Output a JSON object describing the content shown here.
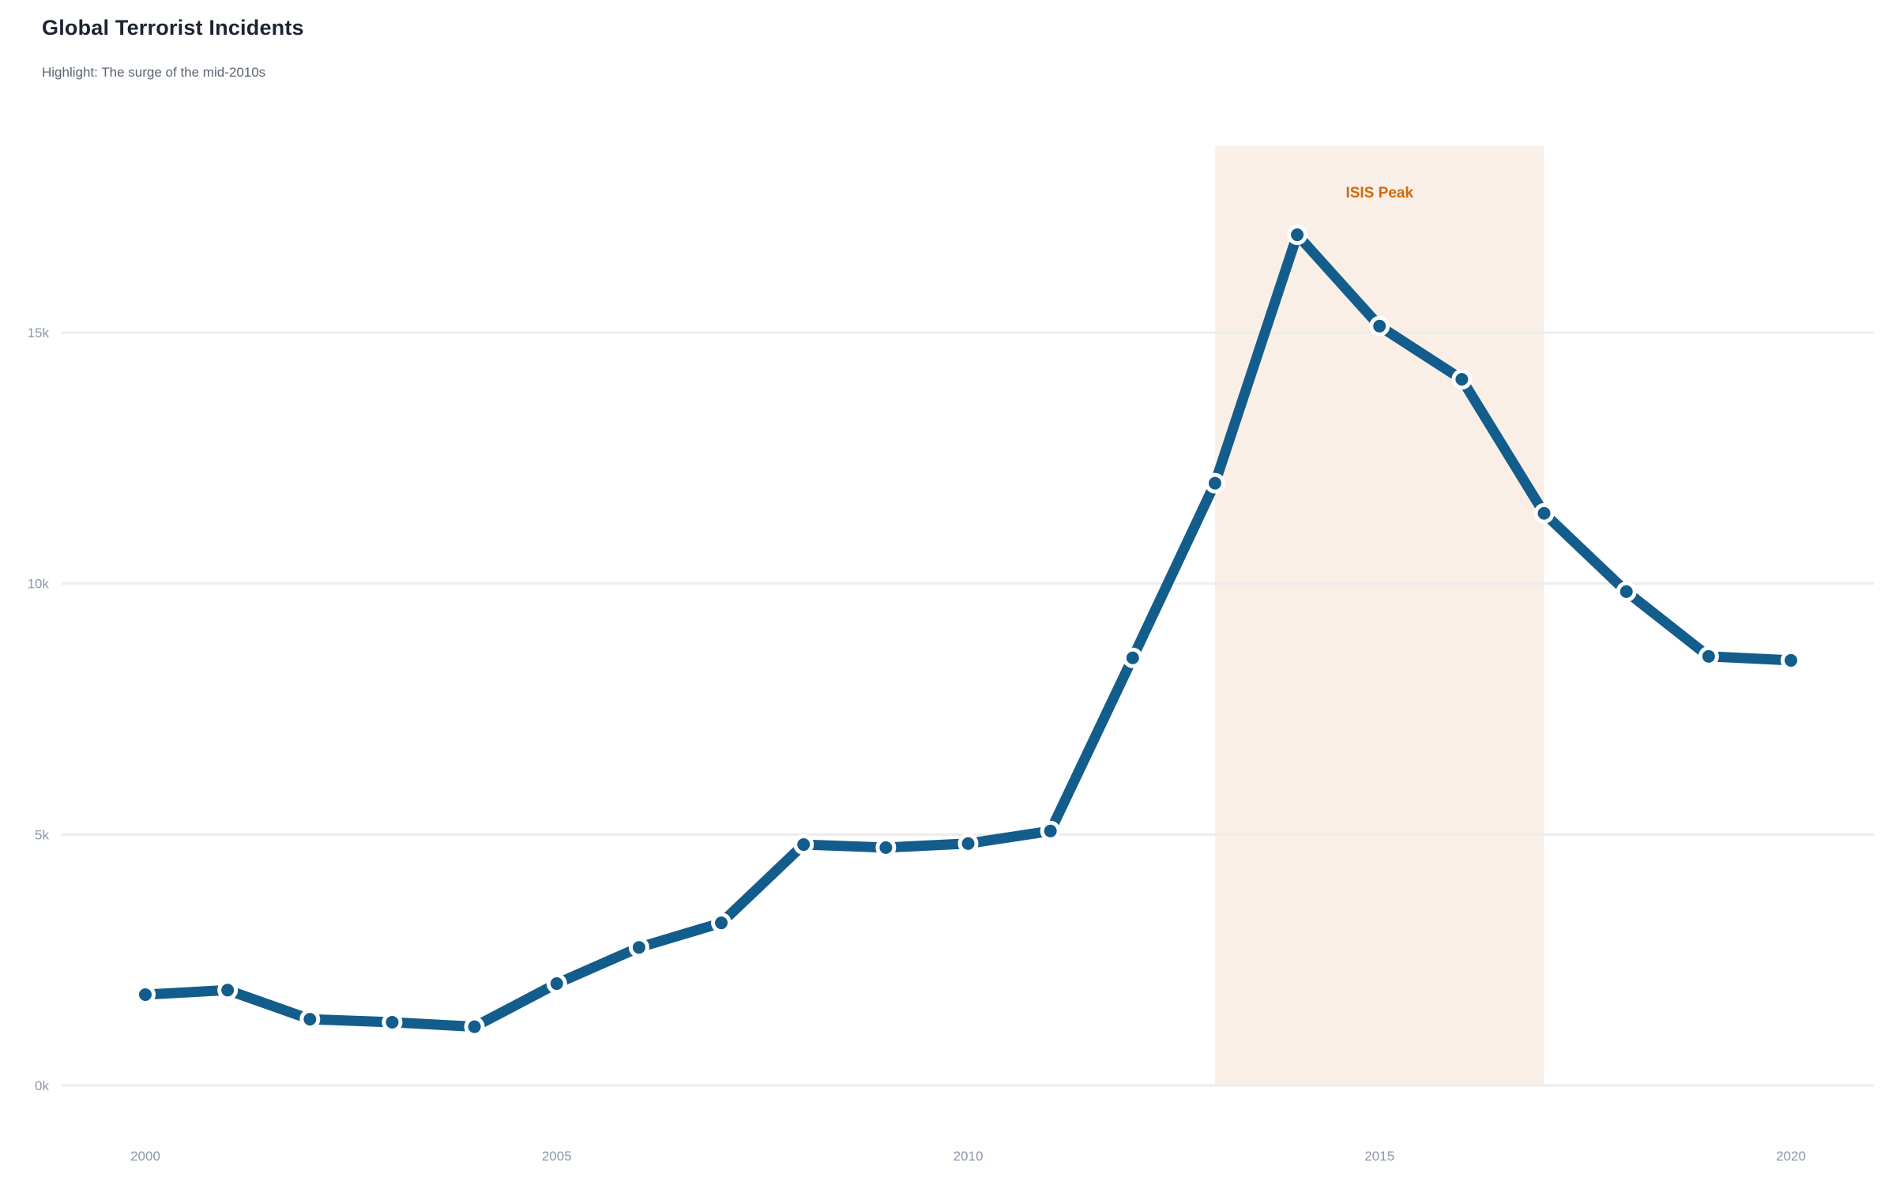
{
  "chart_data": {
    "type": "line",
    "title": "Global Terrorist Incidents",
    "subtitle": "Highlight: The surge of the mid-2010s",
    "xlabel": "",
    "ylabel": "",
    "x": [
      2000,
      2001,
      2002,
      2003,
      2004,
      2005,
      2006,
      2007,
      2008,
      2009,
      2010,
      2011,
      2012,
      2013,
      2014,
      2015,
      2016,
      2017,
      2018,
      2019,
      2020
    ],
    "series": [
      {
        "name": "Global terrorist incidents",
        "values": [
          1810,
          1900,
          1320,
          1260,
          1170,
          2030,
          2750,
          3240,
          4800,
          4740,
          4820,
          5070,
          8520,
          12000,
          16950,
          15130,
          14070,
          11400,
          9840,
          8550,
          8470
        ]
      }
    ],
    "x_ticks": [
      "2000",
      "2005",
      "2010",
      "2015",
      "2020"
    ],
    "y_ticks": [
      {
        "value": 0,
        "label": "0k"
      },
      {
        "value": 5000,
        "label": "5k"
      },
      {
        "value": 10000,
        "label": "10k"
      },
      {
        "value": 15000,
        "label": "15k"
      }
    ],
    "ylim": [
      0,
      18700
    ],
    "xlim": [
      2000,
      2020
    ],
    "grid": "horizontal",
    "legend": "none",
    "marker": "circle",
    "annotation": {
      "label": "ISIS Peak",
      "x_start": 2013,
      "x_end": 2017
    },
    "colors": {
      "line": "#135d8c",
      "marker": "#135d8c",
      "marker_halo": "#ffffff",
      "band": "#faefe7",
      "annotation_text": "#d2690e",
      "grid": "#ececec",
      "tick_label": "#8d97a8",
      "title": "#1d2433",
      "subtitle": "#5a6472",
      "background": "#ffffff"
    }
  }
}
